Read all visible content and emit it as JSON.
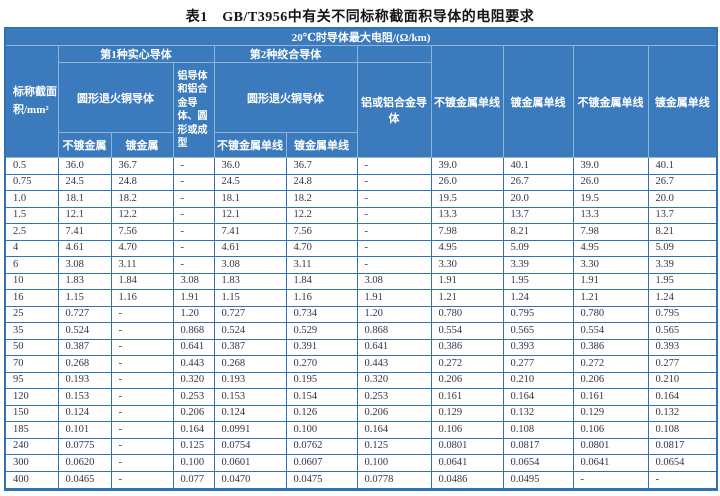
{
  "title": "表1　GB/T3956中有关不同标称截面积导体的电阻要求",
  "colors": {
    "header_bg": "#3b7bbd",
    "header_grid": "#8db3db",
    "border_blue": "#2e73b4",
    "data_text": "#33363d",
    "title_text": "#141414"
  },
  "table": {
    "header": {
      "max_resistance": "20℃时导体最大电阻/(Ω/km)",
      "nominal_area": "标称截面积/mm²",
      "type1_solid": "第1种实心导体",
      "type2_stranded": "第2种绞合导体",
      "round_annealed_copper": "圆形退火铜导体",
      "al_solid": "铝导体和铝合金导体、圆形或成型",
      "al_stranded": "铝或铝合金导体",
      "unplated_metal": "不镀金属",
      "plated_metal": "镀金属",
      "unplated_wire": "不镀金属单线",
      "plated_wire": "镀金属单线"
    },
    "rows": [
      [
        "0.5",
        "36.0",
        "36.7",
        "-",
        "36.0",
        "36.7",
        "-",
        "39.0",
        "40.1",
        "39.0",
        "40.1"
      ],
      [
        "0.75",
        "24.5",
        "24.8",
        "-",
        "24.5",
        "24.8",
        "-",
        "26.0",
        "26.7",
        "26.0",
        "26.7"
      ],
      [
        "1.0",
        "18.1",
        "18.2",
        "-",
        "18.1",
        "18.2",
        "-",
        "19.5",
        "20.0",
        "19.5",
        "20.0"
      ],
      [
        "1.5",
        "12.1",
        "12.2",
        "-",
        "12.1",
        "12.2",
        "-",
        "13.3",
        "13.7",
        "13.3",
        "13.7"
      ],
      [
        "2.5",
        "7.41",
        "7.56",
        "-",
        "7.41",
        "7.56",
        "-",
        "7.98",
        "8.21",
        "7.98",
        "8.21"
      ],
      [
        "4",
        "4.61",
        "4.70",
        "-",
        "4.61",
        "4.70",
        "-",
        "4.95",
        "5.09",
        "4.95",
        "5.09"
      ],
      [
        "6",
        "3.08",
        "3.11",
        "-",
        "3.08",
        "3.11",
        "-",
        "3.30",
        "3.39",
        "3.30",
        "3.39"
      ],
      [
        "10",
        "1.83",
        "1.84",
        "3.08",
        "1.83",
        "1.84",
        "3.08",
        "1.91",
        "1.95",
        "1.91",
        "1.95"
      ],
      [
        "16",
        "1.15",
        "1.16",
        "1.91",
        "1.15",
        "1.16",
        "1.91",
        "1.21",
        "1.24",
        "1.21",
        "1.24"
      ],
      [
        "25",
        "0.727",
        "-",
        "1.20",
        "0.727",
        "0.734",
        "1.20",
        "0.780",
        "0.795",
        "0.780",
        "0.795"
      ],
      [
        "35",
        "0.524",
        "-",
        "0.868",
        "0.524",
        "0.529",
        "0.868",
        "0.554",
        "0.565",
        "0.554",
        "0.565"
      ],
      [
        "50",
        "0.387",
        "-",
        "0.641",
        "0.387",
        "0.391",
        "0.641",
        "0.386",
        "0.393",
        "0.386",
        "0.393"
      ],
      [
        "70",
        "0.268",
        "-",
        "0.443",
        "0.268",
        "0.270",
        "0.443",
        "0.272",
        "0.277",
        "0.272",
        "0.277"
      ],
      [
        "95",
        "0.193",
        "-",
        "0.320",
        "0.193",
        "0.195",
        "0.320",
        "0.206",
        "0.210",
        "0.206",
        "0.210"
      ],
      [
        "120",
        "0.153",
        "-",
        "0.253",
        "0.153",
        "0.154",
        "0.253",
        "0.161",
        "0.164",
        "0.161",
        "0.164"
      ],
      [
        "150",
        "0.124",
        "-",
        "0.206",
        "0.124",
        "0.126",
        "0.206",
        "0.129",
        "0.132",
        "0.129",
        "0.132"
      ],
      [
        "185",
        "0.101",
        "-",
        "0.164",
        "0.0991",
        "0.100",
        "0.164",
        "0.106",
        "0.108",
        "0.106",
        "0.108"
      ],
      [
        "240",
        "0.0775",
        "-",
        "0.125",
        "0.0754",
        "0.0762",
        "0.125",
        "0.0801",
        "0.0817",
        "0.0801",
        "0.0817"
      ],
      [
        "300",
        "0.0620",
        "-",
        "0.100",
        "0.0601",
        "0.0607",
        "0.100",
        "0.0641",
        "0.0654",
        "0.0641",
        "0.0654"
      ],
      [
        "400",
        "0.0465",
        "-",
        "0.077",
        "0.0470",
        "0.0475",
        "0.0778",
        "0.0486",
        "0.0495",
        "-",
        "-"
      ]
    ]
  }
}
